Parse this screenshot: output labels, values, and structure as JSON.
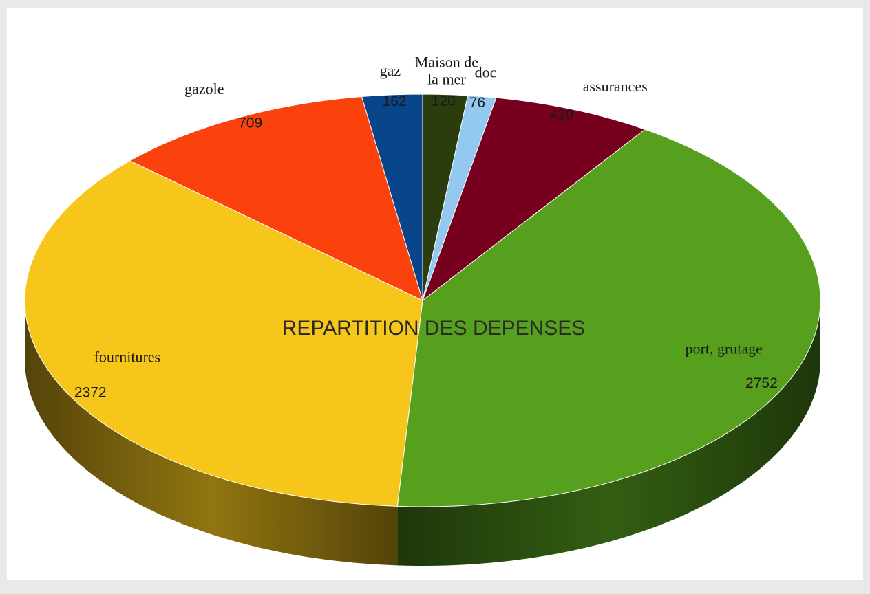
{
  "chart_data": {
    "type": "pie",
    "title": "REPARTITION DES DEPENSES",
    "slices": [
      {
        "label": "Maison de la mer",
        "value": 120,
        "color": "#2b3d0c"
      },
      {
        "label": "doc",
        "value": 76,
        "color": "#93c9f0"
      },
      {
        "label": "assurances",
        "value": 429,
        "color": "#76001d"
      },
      {
        "label": "port, grutage",
        "value": 2752,
        "color": "#57a01e"
      },
      {
        "label": "fournitures",
        "value": 2372,
        "color": "#f6c61b"
      },
      {
        "label": "gazole",
        "value": 709,
        "color": "#fb420d"
      },
      {
        "label": "gaz",
        "value": 162,
        "color": "#08458a"
      }
    ],
    "label_lines": {
      "Maison de la mer": [
        "Maison de",
        "la mer"
      ]
    },
    "style": "3d",
    "legend": "none"
  }
}
